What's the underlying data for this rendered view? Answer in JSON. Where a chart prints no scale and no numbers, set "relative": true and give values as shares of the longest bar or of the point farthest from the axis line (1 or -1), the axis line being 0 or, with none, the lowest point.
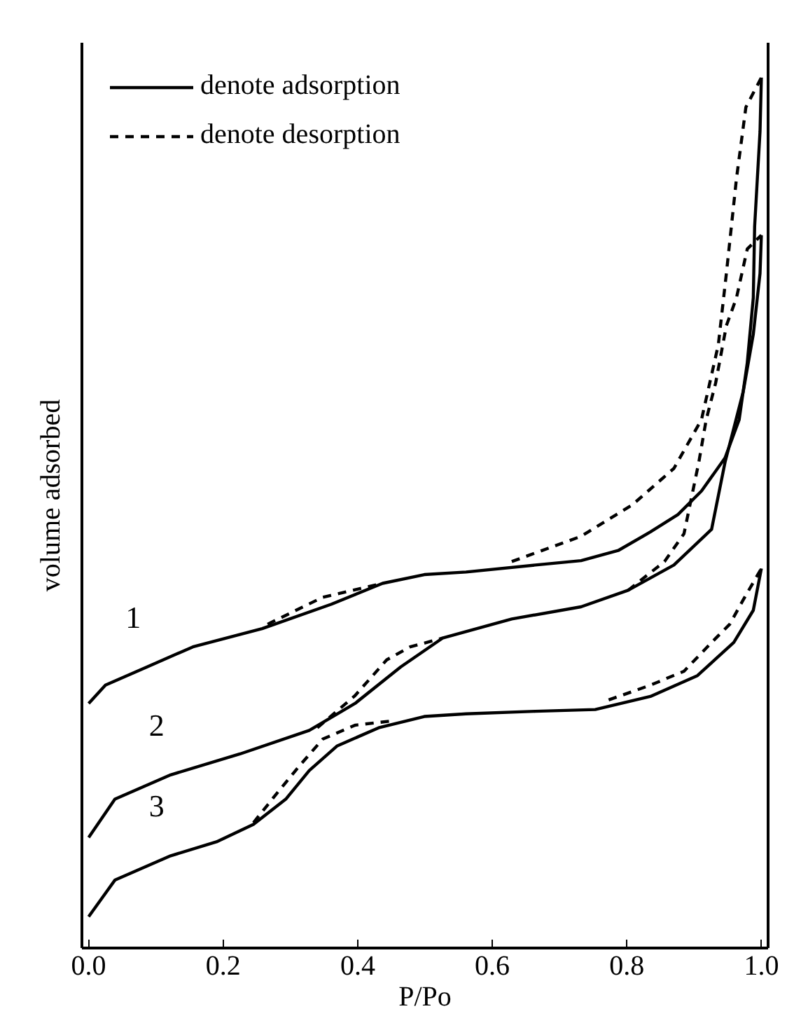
{
  "chart_data": {
    "type": "line",
    "xlabel": "P/Po",
    "ylabel": "volume adsorbed",
    "relative": true,
    "tick_labels": "x",
    "legend": "top left",
    "xlim": [
      -0.01,
      1.01
    ],
    "xticks": [
      {
        "value": 0,
        "label": "0.0"
      },
      {
        "value": 0.2,
        "label": "0.2"
      },
      {
        "value": 0.4,
        "label": "0.4"
      },
      {
        "value": 0.6,
        "label": "0.6"
      },
      {
        "value": 0.8,
        "label": "0.8"
      },
      {
        "value": 1.0,
        "label": "1.0"
      }
    ],
    "annotations": [
      "1",
      "2",
      "3"
    ],
    "series": [
      {
        "name": "denote adsorption",
        "color": "#000000",
        "line_style": "solid",
        "x": [
          0,
          0.025,
          0.087,
          0.155,
          0.258,
          0.361,
          0.437,
          0.499,
          0.561,
          0.664,
          0.732,
          0.788,
          0.835,
          0.876,
          0.911,
          0.946,
          0.967,
          0.979,
          0.988,
          0.99,
          0.998,
          1.0
        ],
        "values": [
          0.281,
          0.302,
          0.323,
          0.346,
          0.367,
          0.395,
          0.419,
          0.429,
          0.432,
          0.44,
          0.445,
          0.457,
          0.478,
          0.498,
          0.525,
          0.563,
          0.607,
          0.672,
          0.747,
          0.829,
          0.938,
          1.0
        ]
      },
      {
        "name": "denote desorption",
        "color": "#000000",
        "line_style": "dashed",
        "x": [
          0.266,
          0.348,
          0.437,
          0.5,
          0.629,
          0.732,
          0.808,
          0.87,
          0.911,
          0.936,
          0.948,
          0.963,
          0.977,
          1.0
        ],
        "values": [
          0.372,
          0.403,
          0.419,
          null,
          0.444,
          0.473,
          0.509,
          0.551,
          0.607,
          0.693,
          0.775,
          0.884,
          0.966,
          1.0
        ]
      },
      {
        "color": "#000000",
        "line_style": "solid",
        "x": [
          0,
          0.039,
          0.122,
          0.225,
          0.328,
          0.396,
          0.464,
          0.526,
          0.629,
          0.732,
          0.802,
          0.87,
          0.926,
          0.946,
          0.973,
          0.988,
          0.998,
          1.0
        ],
        "values": [
          0.127,
          0.171,
          0.199,
          0.223,
          0.25,
          0.281,
          0.323,
          0.356,
          0.378,
          0.392,
          0.411,
          0.44,
          0.481,
          0.558,
          0.639,
          0.705,
          0.775,
          0.819
        ]
      },
      {
        "color": "#000000",
        "line_style": "dashed",
        "x": [
          0.34,
          0.396,
          0.443,
          0.478,
          0.526,
          0.65,
          0.802,
          0.856,
          0.885,
          0.907,
          0.918,
          0.932,
          0.948,
          0.963,
          0.979,
          1.0
        ],
        "values": [
          0.253,
          0.29,
          0.331,
          0.346,
          0.356,
          null,
          0.411,
          0.444,
          0.476,
          0.558,
          0.607,
          0.649,
          0.715,
          0.747,
          0.803,
          0.819
        ]
      },
      {
        "color": "#000000",
        "line_style": "solid",
        "x": [
          0,
          0.039,
          0.122,
          0.19,
          0.245,
          0.293,
          0.328,
          0.369,
          0.431,
          0.499,
          0.561,
          0.664,
          0.753,
          0.835,
          0.905,
          0.959,
          0.988,
          1.0
        ],
        "values": [
          0.036,
          0.078,
          0.106,
          0.122,
          0.142,
          0.171,
          0.204,
          0.232,
          0.253,
          0.266,
          0.269,
          0.272,
          0.274,
          0.289,
          0.313,
          0.351,
          0.388,
          0.436
        ]
      },
      {
        "color": "#000000",
        "line_style": "dashed",
        "x": [
          0.245,
          0.278,
          0.313,
          0.348,
          0.396,
          0.452,
          0.6,
          0.773,
          0.835,
          0.885,
          0.926,
          0.953,
          0.973,
          1.0
        ],
        "values": [
          0.144,
          0.176,
          0.209,
          0.24,
          0.256,
          0.261,
          null,
          0.285,
          0.302,
          0.318,
          0.351,
          0.372,
          0.4,
          0.436
        ]
      }
    ]
  }
}
